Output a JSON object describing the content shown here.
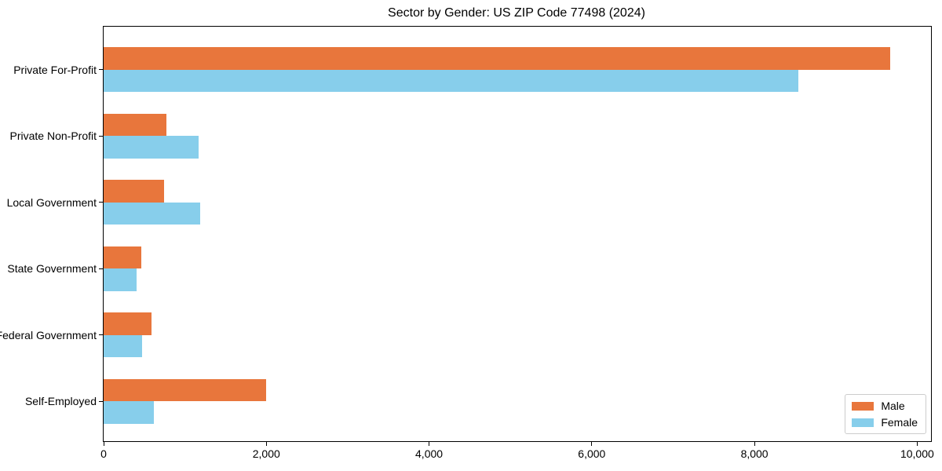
{
  "chart_data": {
    "type": "bar",
    "orientation": "horizontal",
    "title": "Sector by Gender: US ZIP Code 77498 (2024)",
    "categories": [
      "Private For-Profit",
      "Private Non-Profit",
      "Local Government",
      "State Government",
      "Federal Government",
      "Self-Employed"
    ],
    "series": [
      {
        "name": "Male",
        "color": "#e8763c",
        "values": [
          9670,
          770,
          740,
          460,
          585,
          2000
        ]
      },
      {
        "name": "Female",
        "color": "#87ceeb",
        "values": [
          8540,
          1170,
          1185,
          410,
          475,
          620
        ]
      }
    ],
    "xlabel": "",
    "ylabel": "",
    "xlim": [
      0,
      10170
    ],
    "xticks": [
      0,
      2000,
      4000,
      6000,
      8000,
      10000
    ],
    "xtick_labels": [
      "0",
      "2,000",
      "4,000",
      "6,000",
      "8,000",
      "10,000"
    ],
    "legend": {
      "position": "lower-right",
      "entries": [
        "Male",
        "Female"
      ]
    },
    "grid": false,
    "axis_color": "#000000",
    "background": "#ffffff"
  }
}
